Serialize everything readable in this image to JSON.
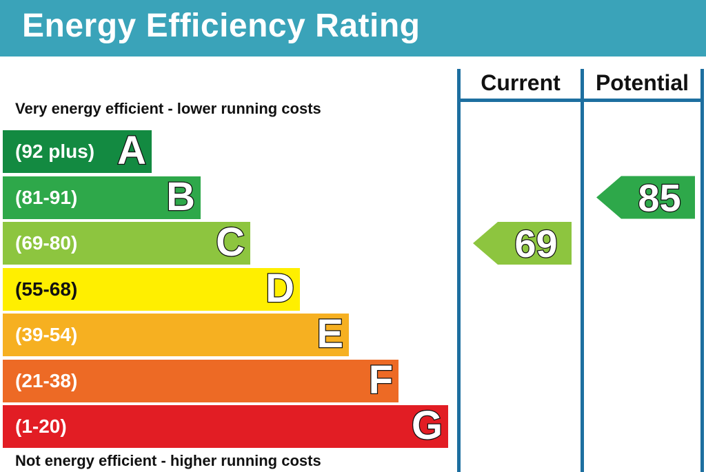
{
  "header": {
    "title": "Energy Efficiency Rating"
  },
  "captions": {
    "top": "Very energy efficient - lower running costs",
    "bottom": "Not energy efficient - higher running costs"
  },
  "columns": {
    "current": "Current",
    "potential": "Potential"
  },
  "colors": {
    "header": "#3aa3b9",
    "rule": "#1d6fa0"
  },
  "chart_data": {
    "type": "bar",
    "title": "Energy Efficiency Rating",
    "bands": [
      {
        "letter": "A",
        "range": "(92 plus)",
        "min": 92,
        "max": 100,
        "color": "#138a41"
      },
      {
        "letter": "B",
        "range": "(81-91)",
        "min": 81,
        "max": 91,
        "color": "#2ea84a"
      },
      {
        "letter": "C",
        "range": "(69-80)",
        "min": 69,
        "max": 80,
        "color": "#8dc53f"
      },
      {
        "letter": "D",
        "range": "(55-68)",
        "min": 55,
        "max": 68,
        "color": "#ffef00"
      },
      {
        "letter": "E",
        "range": "(39-54)",
        "min": 39,
        "max": 54,
        "color": "#f6b021"
      },
      {
        "letter": "F",
        "range": "(21-38)",
        "min": 21,
        "max": 38,
        "color": "#ed6a25"
      },
      {
        "letter": "G",
        "range": "(1-20)",
        "min": 1,
        "max": 20,
        "color": "#e21d24"
      }
    ],
    "current": {
      "value": "69",
      "band": "C"
    },
    "potential": {
      "value": "85",
      "band": "B"
    }
  }
}
